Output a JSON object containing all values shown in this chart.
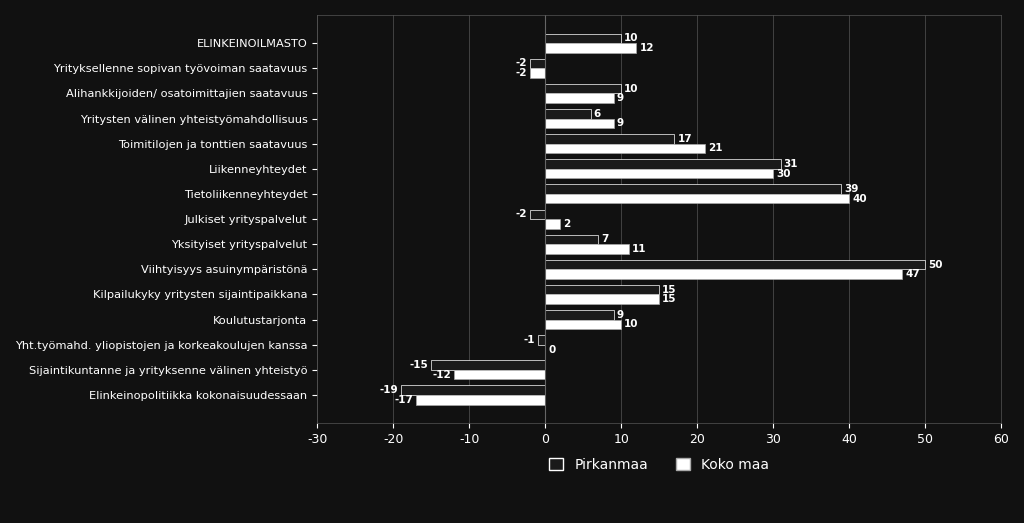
{
  "categories": [
    "ELINKEINOILMASTO",
    "Yrityksellenne sopivan työvoiman saatavuus",
    "Alihankkijoiden/ osatoimittajien saatavuus",
    "Yritysten välinen yhteistyömahdollisuus",
    "Toimitilojen ja tonttien saatavuus",
    "Liikenneyhteydet",
    "Tietoliikenneyhteydet",
    "Julkiset yrityspalvelut",
    "Yksityiset yrityspalvelut",
    "Viihtyisyys asuinympäristönä",
    "Kilpailukyky yritysten sijaintipaikkana",
    "Koulutustarjonta",
    "Yht.työmahd. yliopistojen ja korkeakoulujen kanssa",
    "Sijaintikuntanne ja yrityksenne välinen yhteistyö",
    "Elinkeinopolitiikka kokonaisuudessaan"
  ],
  "pirkanmaa": [
    10,
    -2,
    10,
    6,
    17,
    31,
    39,
    -2,
    7,
    50,
    15,
    9,
    -1,
    -15,
    -19
  ],
  "koko_maa": [
    12,
    -2,
    9,
    9,
    21,
    30,
    40,
    2,
    11,
    47,
    15,
    10,
    0,
    -12,
    -17
  ],
  "color_pirkanmaa": "#1a1a1a",
  "color_koko_maa": "#ffffff",
  "edge_pirkanmaa": "#ffffff",
  "edge_koko_maa": "#aaaaaa",
  "background_color": "#111111",
  "text_color": "#ffffff",
  "bar_height": 0.38,
  "xlim": [
    -30,
    60
  ],
  "xticks": [
    -30,
    -20,
    -10,
    0,
    10,
    20,
    30,
    40,
    50,
    60
  ],
  "legend_pirkanmaa": "Pirkanmaa",
  "legend_koko_maa": "Koko maa",
  "fontsize_labels": 8.2,
  "fontsize_ticks": 9,
  "fontsize_annotations": 7.5
}
